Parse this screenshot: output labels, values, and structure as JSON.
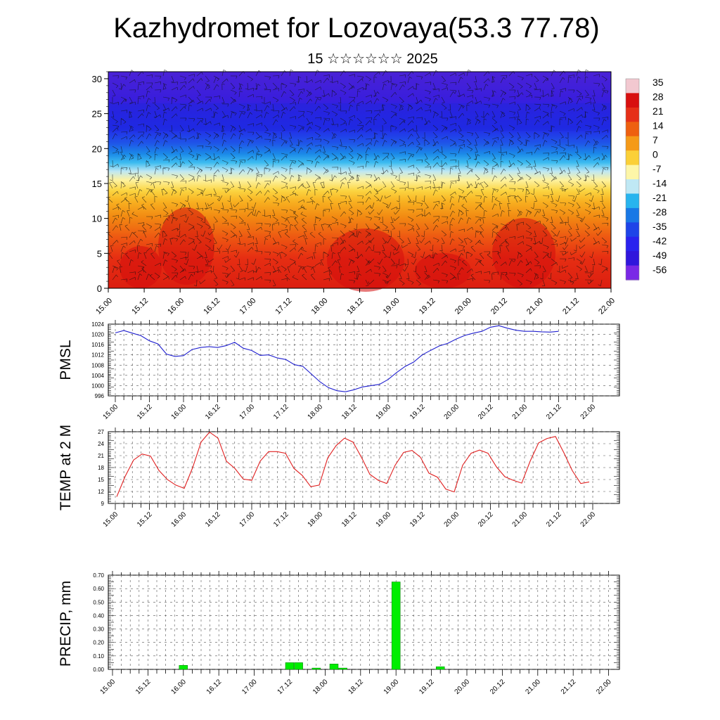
{
  "title": "Kazhydromet for Lozovaya(53.3 77.78)",
  "subtitle": "15 ☆☆☆☆☆☆ 2025",
  "colors": {
    "pmsl_line": "#2020d0",
    "temp_line": "#e02020",
    "precip_bar": "#00ee00",
    "grid": "#555555"
  },
  "chart_data": [
    {
      "id": "vertical-section",
      "type": "heatmap",
      "title": "",
      "ylabel": "",
      "ylim": [
        0,
        31
      ],
      "yticks": [
        0,
        5,
        10,
        15,
        20,
        25,
        30
      ],
      "xticks": [
        "15.00",
        "15.12",
        "16.00",
        "16.12",
        "17.00",
        "17.12",
        "18.00",
        "18.12",
        "19.00",
        "19.12",
        "20.00",
        "20.12",
        "21.00",
        "21.12",
        "22.00"
      ],
      "overlay": "wind barbs",
      "colorbar_labels": [
        "35",
        "28",
        "21",
        "14",
        "7",
        "0",
        "-7",
        "-14",
        "-21",
        "-28",
        "-35",
        "-42",
        "-49",
        "-56"
      ],
      "colorbar_colors": [
        "#f2c8d0",
        "#d81010",
        "#e63018",
        "#ee6010",
        "#f59a18",
        "#fbd038",
        "#fdf6a8",
        "#bfe8f4",
        "#28b4ee",
        "#1878e6",
        "#1e44e8",
        "#2a22ee",
        "#3016dc",
        "#7a28e6"
      ]
    },
    {
      "id": "pmsl",
      "type": "line",
      "ylabel": "PMSL",
      "ylim": [
        996,
        1024
      ],
      "yticks": [
        996,
        1000,
        1004,
        1008,
        1012,
        1016,
        1020,
        1024
      ],
      "xticks": [
        "15.00",
        "15.12",
        "16.00",
        "16.12",
        "17.00",
        "17.12",
        "18.00",
        "18.12",
        "19.00",
        "19.12",
        "20.00",
        "20.12",
        "21.00",
        "21.12",
        "22.00"
      ],
      "series": [
        {
          "values": [
            1020.6,
            1021.5,
            1020.5,
            1019.5,
            1017.5,
            1016.3,
            1012.3,
            1011.4,
            1011.7,
            1014.1,
            1014.9,
            1015.2,
            1014.9,
            1015.6,
            1016.9,
            1014.6,
            1013.7,
            1011.8,
            1012.0,
            1010.8,
            1010.2,
            1008.2,
            1007.5,
            1004.5,
            1001.5,
            999.2,
            998.0,
            997.6,
            998.4,
            999.5,
            1000.0,
            1000.5,
            1002.4,
            1005.1,
            1007.5,
            1009.2,
            1012.0,
            1013.8,
            1015.5,
            1016.5,
            1018.2,
            1019.6,
            1020.5,
            1021.2,
            1022.8,
            1023.4,
            1022.4,
            1021.6,
            1021.2,
            1021.2,
            1021.0,
            1020.9,
            1021.2
          ]
        }
      ]
    },
    {
      "id": "temp",
      "type": "line",
      "ylabel": "TEMP at 2 M",
      "ylim": [
        9,
        27
      ],
      "yticks": [
        9,
        12,
        15,
        18,
        21,
        24,
        27
      ],
      "xticks": [
        "15.00",
        "15.12",
        "16.00",
        "16.12",
        "17.00",
        "17.12",
        "18.00",
        "18.12",
        "19.00",
        "19.12",
        "20.00",
        "20.12",
        "21.00",
        "21.12",
        "22.00"
      ],
      "series": [
        {
          "values": [
            10.7,
            15.8,
            19.9,
            21.4,
            20.9,
            17.3,
            15.0,
            13.6,
            12.8,
            18.0,
            24.4,
            26.9,
            25.4,
            19.6,
            17.8,
            15.1,
            14.8,
            19.6,
            22.0,
            22.0,
            21.6,
            17.8,
            16.0,
            13.2,
            13.6,
            20.4,
            23.5,
            25.4,
            24.4,
            20.6,
            16.3,
            14.8,
            14.0,
            18.6,
            21.8,
            22.3,
            20.6,
            16.6,
            15.6,
            12.6,
            11.9,
            18.6,
            21.6,
            22.4,
            21.6,
            18.2,
            15.7,
            14.8,
            14.1,
            19.6,
            24.2,
            25.3,
            25.8,
            21.7,
            17.2,
            14.0,
            14.4
          ]
        }
      ]
    },
    {
      "id": "precip",
      "type": "bar",
      "ylabel": "PRECIP, mm",
      "ylim": [
        0,
        0.7
      ],
      "yticks": [
        "0.00",
        "0.10",
        "0.20",
        "0.30",
        "0.40",
        "0.50",
        "0.60",
        "0.70"
      ],
      "xticks": [
        "15.00",
        "15.12",
        "16.00",
        "16.12",
        "17.00",
        "17.12",
        "18.00",
        "18.12",
        "19.00",
        "19.12",
        "20.00",
        "20.12",
        "21.00",
        "21.12",
        "22.00"
      ],
      "bars": [
        {
          "t": 8,
          "value": 0.03
        },
        {
          "t": 20,
          "value": 0.05
        },
        {
          "t": 21,
          "value": 0.05
        },
        {
          "t": 23,
          "value": 0.01
        },
        {
          "t": 25,
          "value": 0.04
        },
        {
          "t": 26,
          "value": 0.01
        },
        {
          "t": 32,
          "value": 0.65
        },
        {
          "t": 37,
          "value": 0.02
        }
      ]
    }
  ]
}
